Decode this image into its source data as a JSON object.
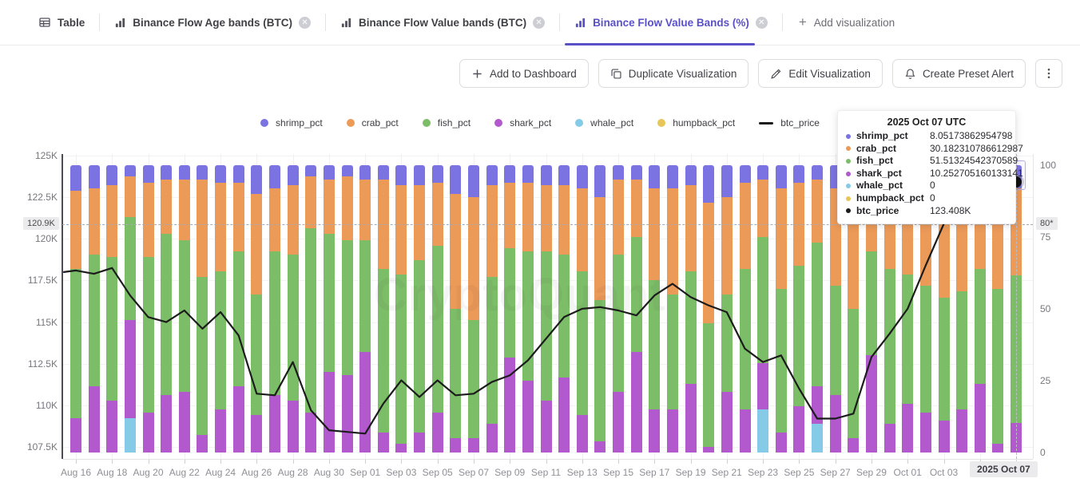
{
  "accent_color": "#5a50c8",
  "watermark": "CryptoQuant",
  "tab_bar": {
    "tabs": [
      {
        "label": "Table",
        "icon": "table-icon",
        "active": false,
        "closable": false
      },
      {
        "label": "Binance Flow Age bands (BTC)",
        "icon": "chart-icon",
        "active": false,
        "closable": true
      },
      {
        "label": "Binance Flow Value bands (BTC)",
        "icon": "chart-icon",
        "active": false,
        "closable": true
      },
      {
        "label": "Binance Flow Value Bands (%)",
        "icon": "chart-icon",
        "active": true,
        "closable": true
      }
    ],
    "add_label": "Add visualization"
  },
  "toolbar": {
    "buttons": [
      {
        "label": "Add to Dashboard",
        "icon": "plus-icon"
      },
      {
        "label": "Duplicate Visualization",
        "icon": "duplicate-icon"
      },
      {
        "label": "Edit Visualization",
        "icon": "edit-icon"
      },
      {
        "label": "Create Preset Alert",
        "icon": "bell-icon"
      }
    ]
  },
  "legend": [
    {
      "label": "shrimp_pct",
      "color": "#7b73e2",
      "type": "dot"
    },
    {
      "label": "crab_pct",
      "color": "#eb9a58",
      "type": "dot"
    },
    {
      "label": "fish_pct",
      "color": "#7cbd68",
      "type": "dot"
    },
    {
      "label": "shark_pct",
      "color": "#b159cd",
      "type": "dot"
    },
    {
      "label": "whale_pct",
      "color": "#85cbe8",
      "type": "dot"
    },
    {
      "label": "humpback_pct",
      "color": "#e7c657",
      "type": "dot"
    },
    {
      "label": "btc_price",
      "color": "#1c1c1c",
      "type": "line"
    }
  ],
  "tooltip": {
    "title": "2025 Oct 07 UTC",
    "rows": [
      {
        "label": "shrimp_pct",
        "value": "8.05173862954798",
        "color": "#7b73e2"
      },
      {
        "label": "crab_pct",
        "value": "30.182310786612987",
        "color": "#eb9a58"
      },
      {
        "label": "fish_pct",
        "value": "51.51324542370589",
        "color": "#7cbd68"
      },
      {
        "label": "shark_pct",
        "value": "10.252705160133141",
        "color": "#b159cd"
      },
      {
        "label": "whale_pct",
        "value": "0",
        "color": "#85cbe8"
      },
      {
        "label": "humpback_pct",
        "value": "0",
        "color": "#e7c657"
      },
      {
        "label": "btc_price",
        "value": "123.408K",
        "color": "#1c1c1c"
      }
    ]
  },
  "axes": {
    "left_ticks": [
      {
        "label": "125K",
        "value": 125
      },
      {
        "label": "122.5K",
        "value": 122.5
      },
      {
        "label": "120K",
        "value": 120
      },
      {
        "label": "117.5K",
        "value": 117.5
      },
      {
        "label": "115K",
        "value": 115
      },
      {
        "label": "112.5K",
        "value": 112.5
      },
      {
        "label": "110K",
        "value": 110
      },
      {
        "label": "107.5K",
        "value": 107.5
      }
    ],
    "right_ticks": [
      {
        "label": "100",
        "value": 100
      },
      {
        "label": "75",
        "value": 75
      },
      {
        "label": "50",
        "value": 50
      },
      {
        "label": "25",
        "value": 25
      },
      {
        "label": "0",
        "value": 0
      }
    ],
    "left_marker": {
      "label": "120.9K",
      "value": 120.9
    },
    "right_marker": {
      "label": "80*",
      "value": 80.9
    },
    "x_marker": "2025 Oct 07",
    "x_label_fragment": "7"
  },
  "chart_data": {
    "type": "bar",
    "stacked": true,
    "title": "Binance Flow Value Bands (%)",
    "legend_position": "top",
    "grid": true,
    "y_right_range": [
      0,
      100
    ],
    "y_left_range": [
      107.5,
      125
    ],
    "y_left_unit": "K",
    "x_tick_every": 2,
    "hover_index": 52,
    "categories": [
      "Aug 16",
      "Aug 17",
      "Aug 18",
      "Aug 19",
      "Aug 20",
      "Aug 21",
      "Aug 22",
      "Aug 23",
      "Aug 24",
      "Aug 25",
      "Aug 26",
      "Aug 27",
      "Aug 28",
      "Aug 29",
      "Aug 30",
      "Aug 31",
      "Sep 01",
      "Sep 02",
      "Sep 03",
      "Sep 04",
      "Sep 05",
      "Sep 06",
      "Sep 07",
      "Sep 08",
      "Sep 09",
      "Sep 10",
      "Sep 11",
      "Sep 12",
      "Sep 13",
      "Sep 14",
      "Sep 15",
      "Sep 16",
      "Sep 17",
      "Sep 18",
      "Sep 19",
      "Sep 20",
      "Sep 21",
      "Sep 22",
      "Sep 23",
      "Sep 24",
      "Sep 25",
      "Sep 26",
      "Sep 27",
      "Sep 28",
      "Sep 29",
      "Sep 30",
      "Oct 01",
      "Oct 02",
      "Oct 03",
      "Oct 04",
      "Oct 05",
      "Oct 06",
      "Oct 07"
    ],
    "series": [
      {
        "name": "shrimp_pct",
        "color": "#7b73e2",
        "values": [
          9,
          8,
          7,
          4,
          6,
          5,
          5,
          5,
          6,
          6,
          10,
          8,
          7,
          4,
          5,
          4,
          5,
          5,
          7,
          7,
          6,
          10,
          11,
          7,
          6,
          6,
          7,
          7,
          8,
          11,
          5,
          5,
          8,
          8,
          7,
          13,
          11,
          6,
          5,
          8,
          6,
          5,
          8,
          9,
          6,
          5,
          5,
          6,
          6,
          6,
          6,
          7,
          8.05
        ]
      },
      {
        "name": "crab_pct",
        "color": "#eb9a58",
        "values": [
          27,
          23,
          25,
          14,
          26,
          19,
          21,
          34,
          31,
          24,
          35,
          22,
          24,
          18,
          19,
          22,
          21,
          31,
          31,
          26,
          22,
          40,
          43,
          32,
          23,
          24,
          23,
          24,
          29,
          36,
          26,
          20,
          32,
          37,
          30,
          42,
          34,
          30,
          20,
          35,
          29,
          22,
          34,
          41,
          24,
          31,
          33,
          36,
          40,
          38,
          30,
          36,
          30.18
        ]
      },
      {
        "name": "fish_pct",
        "color": "#7cbd68",
        "values": [
          52,
          46,
          50,
          36,
          54,
          56,
          53,
          55,
          48,
          47,
          42,
          50,
          51,
          64,
          48,
          47,
          39,
          57,
          59,
          60,
          58,
          45,
          41,
          51,
          38,
          45,
          52,
          43,
          50,
          49,
          48,
          40,
          45,
          40,
          39,
          43,
          34,
          49,
          44,
          50,
          49,
          50,
          38,
          45,
          36,
          54,
          45,
          44,
          43,
          41,
          40,
          54,
          51.51
        ]
      },
      {
        "name": "shark_pct",
        "color": "#b159cd",
        "values": [
          12,
          23,
          18,
          34,
          14,
          20,
          21,
          6,
          15,
          23,
          13,
          20,
          18,
          14,
          28,
          27,
          35,
          7,
          3,
          7,
          14,
          5,
          5,
          10,
          33,
          25,
          18,
          26,
          13,
          4,
          21,
          35,
          15,
          15,
          24,
          2,
          21,
          15,
          16,
          7,
          16,
          13,
          20,
          5,
          34,
          10,
          17,
          14,
          11,
          15,
          24,
          3,
          10.25
        ]
      },
      {
        "name": "whale_pct",
        "color": "#85cbe8",
        "values": [
          0,
          0,
          0,
          12,
          0,
          0,
          0,
          0,
          0,
          0,
          0,
          0,
          0,
          0,
          0,
          0,
          0,
          0,
          0,
          0,
          0,
          0,
          0,
          0,
          0,
          0,
          0,
          0,
          0,
          0,
          0,
          0,
          0,
          0,
          0,
          0,
          0,
          0,
          15,
          0,
          0,
          10,
          0,
          0,
          0,
          0,
          0,
          0,
          0,
          0,
          0,
          0,
          0
        ]
      },
      {
        "name": "humpback_pct",
        "color": "#e7c657",
        "values": [
          0,
          0,
          0,
          0,
          0,
          0,
          0,
          0,
          0,
          0,
          0,
          0,
          0,
          0,
          0,
          0,
          0,
          0,
          0,
          0,
          0,
          0,
          0,
          0,
          0,
          0,
          0,
          0,
          0,
          0,
          0,
          0,
          0,
          0,
          0,
          0,
          0,
          0,
          0,
          0,
          0,
          0,
          0,
          0,
          0,
          0,
          0,
          0,
          0,
          0,
          0,
          0,
          0
        ]
      }
    ],
    "line": {
      "name": "btc_price",
      "color": "#1c1c1c",
      "values": [
        118.1,
        117.9,
        118.25,
        116.6,
        115.3,
        115.0,
        115.7,
        114.6,
        115.6,
        114.2,
        110.7,
        110.6,
        112.6,
        109.7,
        108.5,
        108.4,
        108.3,
        110.1,
        111.5,
        110.5,
        111.5,
        110.6,
        110.7,
        111.4,
        111.8,
        112.7,
        114.0,
        115.3,
        115.8,
        115.9,
        115.7,
        115.4,
        116.6,
        117.3,
        116.5,
        116.0,
        115.6,
        113.4,
        112.6,
        113.0,
        111.0,
        109.2,
        109.2,
        109.5,
        112.9,
        114.3,
        115.8,
        118.4,
        120.9,
        121.5,
        122.3,
        123.0,
        123.408
      ]
    }
  }
}
